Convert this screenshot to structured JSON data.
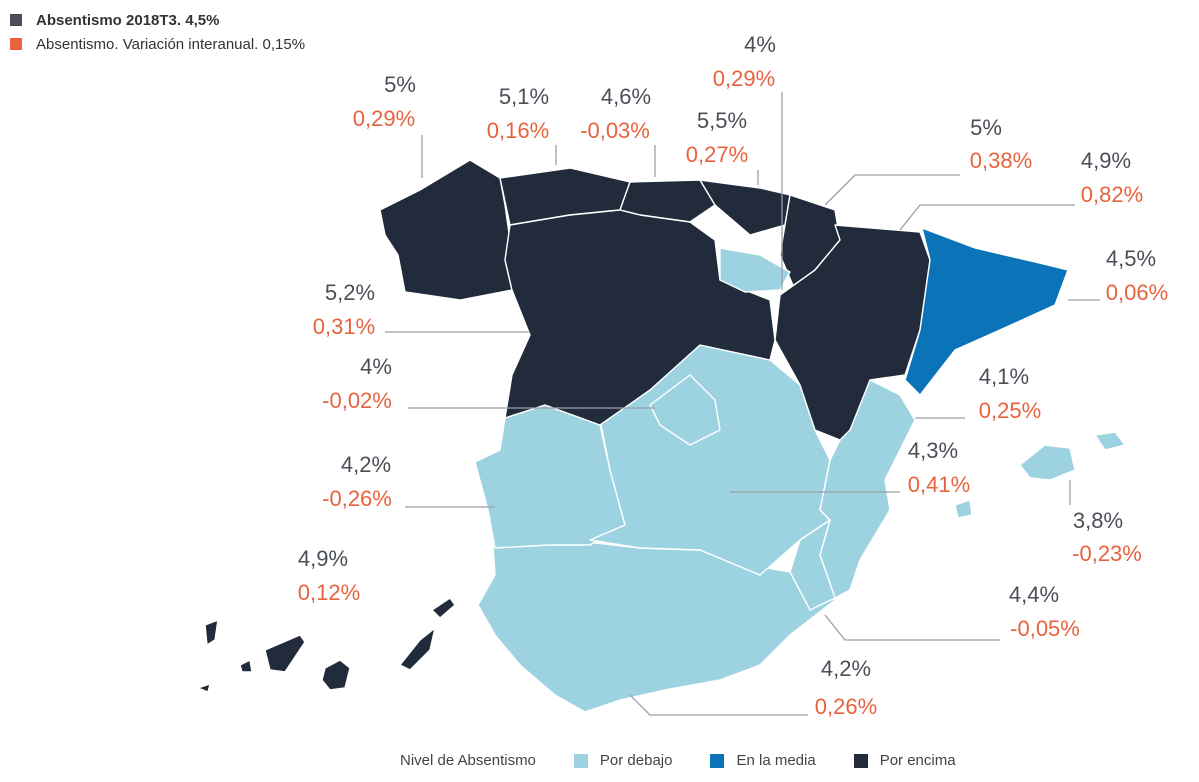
{
  "legend_top": {
    "item1": "Absentismo 2018T3. 4,5%",
    "item2": "Absentismo. Variación interanual. 0,15%",
    "color1": "#4a4f57",
    "color2": "#e8623d"
  },
  "legend_bottom": {
    "title": "Nivel de Absentismo",
    "below": "Por debajo",
    "average": "En la media",
    "above": "Por encima",
    "color_below": "#9dd3e1",
    "color_average": "#0b74b8",
    "color_above": "#222b3b"
  },
  "regions": [
    {
      "key": "galicia",
      "value": "5%",
      "variation": "0,29%",
      "level": "above"
    },
    {
      "key": "asturias",
      "value": "5,1%",
      "variation": "0,16%",
      "level": "above"
    },
    {
      "key": "cantabria",
      "value": "4,6%",
      "variation": "-0,03%",
      "level": "above"
    },
    {
      "key": "pais_vasco",
      "value": "5,5%",
      "variation": "0,27%",
      "level": "above"
    },
    {
      "key": "la_rioja",
      "value": "4%",
      "variation": "0,29%",
      "level": "below"
    },
    {
      "key": "navarra",
      "value": "5%",
      "variation": "0,38%",
      "level": "above"
    },
    {
      "key": "aragon",
      "value": "4,9%",
      "variation": "0,82%",
      "level": "above"
    },
    {
      "key": "cataluna",
      "value": "4,5%",
      "variation": "0,06%",
      "level": "average"
    },
    {
      "key": "castilla_leon",
      "value": "5,2%",
      "variation": "0,31%",
      "level": "above"
    },
    {
      "key": "madrid",
      "value": "4%",
      "variation": "-0,02%",
      "level": "below"
    },
    {
      "key": "valencia",
      "value": "4,1%",
      "variation": "0,25%",
      "level": "below"
    },
    {
      "key": "castilla_la_mancha",
      "value": "4,3%",
      "variation": "0,41%",
      "level": "below"
    },
    {
      "key": "extremadura",
      "value": "4,2%",
      "variation": "-0,26%",
      "level": "below"
    },
    {
      "key": "baleares",
      "value": "3,8%",
      "variation": "-0,23%",
      "level": "below"
    },
    {
      "key": "canarias",
      "value": "4,9%",
      "variation": "0,12%",
      "level": "above"
    },
    {
      "key": "murcia",
      "value": "4,4%",
      "variation": "-0,05%",
      "level": "below"
    },
    {
      "key": "andalucia",
      "value": "4,2%",
      "variation": "0,26%",
      "level": "below"
    }
  ]
}
